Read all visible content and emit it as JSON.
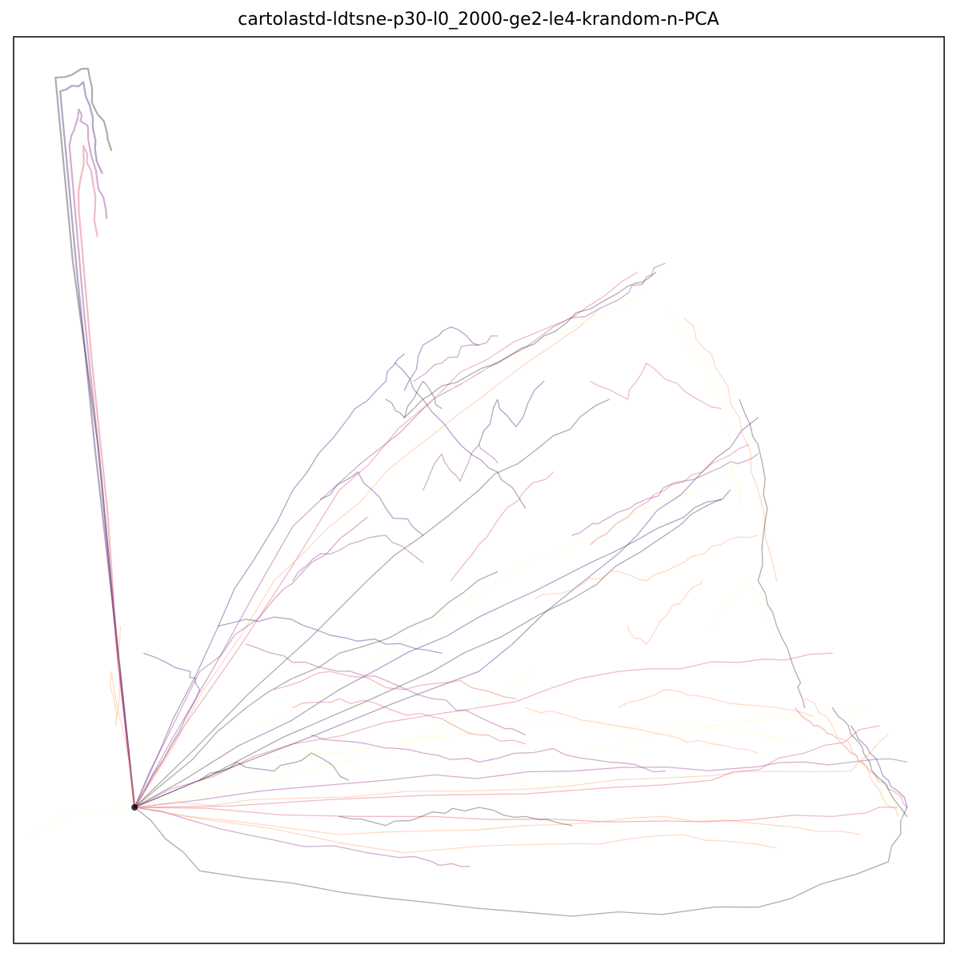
{
  "chart_data": {
    "type": "line",
    "title": "cartolastd-ldtsne-p30-l0_2000-ge2-le4-krandom-n-PCA",
    "xlabel": "",
    "ylabel": "",
    "xlim": [
      0,
      100
    ],
    "ylim": [
      0,
      100
    ],
    "grid": false,
    "legend": "none",
    "ticks": "hidden",
    "colormap": [
      "#000004",
      "#3b0f70",
      "#8c2981",
      "#de4968",
      "#fe9f6d",
      "#fcfdbf"
    ],
    "series": [
      {
        "x": [
          13.0,
          4.5,
          8.0,
          9.0,
          10.5
        ],
        "y": [
          15.0,
          95.5,
          96.5,
          91.5,
          87.5
        ]
      },
      {
        "x": [
          13.0,
          5.0,
          7.5,
          8.5,
          9.5
        ],
        "y": [
          15.0,
          94.0,
          95.0,
          90.0,
          85.0
        ]
      },
      {
        "x": [
          13.0,
          6.0,
          7.0,
          8.0,
          9.0,
          10.0
        ],
        "y": [
          15.0,
          88.0,
          92.0,
          90.0,
          84.0,
          80.0
        ]
      },
      {
        "x": [
          13.0,
          7.0,
          7.5,
          8.5,
          9.0
        ],
        "y": [
          15.0,
          81.0,
          88.0,
          84.0,
          78.0
        ]
      },
      {
        "x": [
          13.0,
          10.5,
          11.0,
          11.5
        ],
        "y": [
          15.0,
          30.0,
          24.0,
          35.0
        ]
      },
      {
        "x": [
          13.0,
          5.0,
          1.5
        ],
        "y": [
          15.0,
          14.0,
          11.5
        ]
      },
      {
        "x": [
          13.0,
          20.0,
          40.0,
          60.0,
          80.0,
          94.0,
          96.0
        ],
        "y": [
          15.0,
          8.0,
          5.0,
          3.0,
          4.0,
          9.0,
          15.0
        ]
      },
      {
        "x": [
          13.0,
          17.0,
          20.0,
          19.0,
          14.0
        ],
        "y": [
          15.0,
          22.0,
          28.0,
          30.0,
          32.0
        ]
      },
      {
        "x": [
          13.0,
          30.0,
          45.0,
          58.0,
          65.0,
          68.0,
          70.0
        ],
        "y": [
          15.0,
          46.0,
          60.0,
          68.0,
          71.0,
          73.5,
          75.0
        ]
      },
      {
        "x": [
          13.0,
          35.0,
          48.0,
          60.0,
          67.0
        ],
        "y": [
          15.0,
          50.0,
          63.0,
          69.0,
          74.0
        ]
      },
      {
        "x": [
          13.0,
          28.0,
          40.0,
          50.0,
          58.0,
          63.0
        ],
        "y": [
          15.0,
          40.0,
          52.0,
          60.0,
          66.0,
          70.0
        ]
      },
      {
        "x": [
          13.0,
          40.0,
          55.0,
          68.0,
          75.0,
          78.0
        ],
        "y": [
          15.0,
          32.0,
          42.0,
          48.0,
          51.0,
          53.0
        ]
      },
      {
        "x": [
          13.0,
          45.0,
          60.0,
          70.0,
          76.0
        ],
        "y": [
          15.0,
          30.0,
          38.0,
          45.0,
          49.0
        ]
      },
      {
        "x": [
          13.0,
          35.0,
          50.0,
          62.0,
          72.0,
          77.0
        ],
        "y": [
          15.0,
          28.0,
          36.0,
          42.0,
          47.0,
          50.0
        ]
      },
      {
        "x": [
          13.0,
          40.0,
          60.0,
          80.0,
          90.0,
          96.0
        ],
        "y": [
          15.0,
          18.0,
          19.0,
          19.5,
          20.0,
          20.0
        ]
      },
      {
        "x": [
          13.0,
          45.0,
          70.0,
          88.0,
          95.0
        ],
        "y": [
          15.0,
          14.0,
          13.5,
          14.0,
          15.0
        ]
      },
      {
        "x": [
          13.0,
          30.0,
          55.0,
          75.0,
          90.0,
          94.0
        ],
        "y": [
          15.0,
          16.0,
          17.0,
          18.5,
          19.0,
          23.0
        ]
      },
      {
        "x": [
          13.0,
          25.0,
          40.0,
          55.0,
          72.0,
          85.0,
          92.0
        ],
        "y": [
          15.0,
          20.0,
          22.0,
          24.0,
          24.0,
          25.0,
          26.0
        ]
      },
      {
        "x": [
          13.0,
          25.0,
          35.0,
          45.0,
          52.0
        ],
        "y": [
          15.0,
          26.0,
          32.0,
          36.0,
          41.0
        ]
      },
      {
        "x": [
          13.0,
          22.0,
          30.0,
          36.0,
          40.0,
          42.0
        ],
        "y": [
          15.0,
          35.0,
          50.0,
          58.0,
          62.0,
          65.0
        ]
      },
      {
        "x": [
          13.0,
          20.0,
          28.0,
          32.0,
          38.0
        ],
        "y": [
          15.0,
          30.0,
          38.0,
          42.0,
          47.0
        ]
      },
      {
        "x": [
          13.0,
          30.0,
          50.0,
          65.0,
          78.0,
          88.0
        ],
        "y": [
          15.0,
          22.0,
          26.0,
          30.0,
          31.0,
          32.0
        ]
      },
      {
        "x": [
          13.0,
          35.0,
          55.0,
          70.0,
          82.0,
          91.0
        ],
        "y": [
          15.0,
          12.0,
          13.0,
          14.0,
          13.0,
          12.0
        ]
      },
      {
        "x": [
          13.0,
          28.0,
          40.0,
          48.0,
          56.0
        ],
        "y": [
          15.0,
          18.0,
          21.0,
          25.0,
          30.0
        ]
      },
      {
        "x": [
          13.0,
          38.0,
          50.0,
          58.0,
          64.0
        ],
        "y": [
          15.0,
          40.0,
          50.0,
          56.0,
          60.0
        ]
      },
      {
        "x": [
          13.0,
          50.0,
          65.0,
          74.0,
          80.0
        ],
        "y": [
          15.0,
          30.0,
          43.0,
          52.0,
          58.0
        ]
      },
      {
        "x": [
          13.0,
          25.0,
          38.0,
          45.0,
          49.0
        ],
        "y": [
          15.0,
          12.0,
          10.0,
          9.0,
          8.5
        ]
      },
      {
        "x": [
          13.0,
          55.0,
          75.0,
          85.0,
          93.0
        ],
        "y": [
          15.0,
          16.5,
          18.0,
          21.0,
          24.0
        ]
      },
      {
        "x": [
          13.0,
          42.0,
          60.0,
          72.0,
          82.0
        ],
        "y": [
          15.0,
          10.0,
          11.0,
          12.0,
          10.5
        ]
      },
      {
        "x": [
          40.0,
          45.0,
          50.0,
          56.0,
          60.0,
          64.0,
          68.0
        ],
        "y": [
          56.0,
          60.0,
          63.0,
          66.0,
          68.0,
          70.0,
          72.0
        ]
      },
      {
        "x": [
          42.0,
          46.0,
          52.0,
          57.0,
          62.0,
          66.0,
          69.0
        ],
        "y": [
          58.0,
          61.5,
          64.0,
          67.0,
          70.0,
          72.5,
          74.0
        ]
      },
      {
        "x": [
          41.0,
          44.0,
          48.0,
          52.0,
          55.0
        ],
        "y": [
          64.0,
          60.0,
          55.0,
          52.0,
          48.0
        ]
      },
      {
        "x": [
          60.0,
          64.0,
          68.0,
          72.0,
          76.0,
          80.0
        ],
        "y": [
          45.0,
          47.0,
          49.0,
          51.0,
          52.5,
          54.0
        ]
      },
      {
        "x": [
          62.0,
          66.0,
          70.0,
          74.0,
          79.0
        ],
        "y": [
          44.0,
          47.0,
          50.0,
          52.0,
          55.0
        ]
      },
      {
        "x": [
          72.0,
          75.0,
          78.0,
          80.0,
          82.0
        ],
        "y": [
          69.0,
          65.0,
          58.0,
          50.0,
          40.0
        ]
      },
      {
        "x": [
          70.0,
          74.0,
          77.0,
          78.0
        ],
        "y": [
          70.0,
          64.0,
          56.0,
          48.0
        ]
      },
      {
        "x": [
          78.0,
          80.0,
          81.0,
          80.0,
          82.0,
          84.0,
          85.0
        ],
        "y": [
          60.0,
          55.0,
          48.0,
          40.0,
          35.0,
          30.0,
          26.0
        ]
      },
      {
        "x": [
          42.0,
          44.0,
          47.0,
          50.0
        ],
        "y": [
          61.0,
          66.0,
          68.0,
          66.0
        ]
      },
      {
        "x": [
          43.0,
          46.0,
          49.0,
          52.0
        ],
        "y": [
          62.0,
          64.0,
          66.0,
          67.0
        ]
      },
      {
        "x": [
          84.0,
          86.0,
          88.0,
          90.0,
          92.0,
          94.0,
          96.0
        ],
        "y": [
          26.0,
          24.0,
          23.0,
          21.0,
          19.0,
          17.0,
          15.0
        ]
      },
      {
        "x": [
          85.0,
          88.0,
          91.0,
          93.0,
          95.0
        ],
        "y": [
          27.0,
          24.0,
          20.0,
          17.0,
          14.0
        ]
      },
      {
        "x": [
          86.0,
          89.0,
          92.0,
          94.0,
          96.0
        ],
        "y": [
          25.0,
          22.0,
          19.0,
          16.0,
          13.0
        ]
      },
      {
        "x": [
          88.0,
          90.0,
          92.0,
          94.0,
          96.0
        ],
        "y": [
          26.0,
          23.0,
          20.0,
          17.0,
          14.0
        ]
      },
      {
        "x": [
          90.0,
          92.0,
          94.0,
          96.0
        ],
        "y": [
          24.0,
          21.0,
          18.0,
          15.0
        ]
      },
      {
        "x": [
          25.0,
          30.0,
          35.0,
          40.0,
          45.0,
          50.0,
          55.0
        ],
        "y": [
          33.0,
          31.0,
          30.0,
          29.0,
          27.0,
          25.0,
          23.0
        ]
      },
      {
        "x": [
          30.0,
          35.0,
          40.0,
          45.0,
          50.0,
          55.0
        ],
        "y": [
          26.0,
          27.0,
          26.0,
          25.0,
          23.0,
          22.0
        ]
      },
      {
        "x": [
          55.0,
          60.0,
          65.0,
          70.0,
          75.0,
          80.0
        ],
        "y": [
          26.0,
          25.0,
          24.0,
          23.0,
          22.0,
          21.0
        ]
      },
      {
        "x": [
          60.0,
          65.0,
          70.0,
          75.0,
          80.0,
          85.0
        ],
        "y": [
          20.0,
          22.0,
          23.0,
          24.0,
          23.0,
          22.0
        ]
      },
      {
        "x": [
          35.0,
          40.0,
          45.0,
          50.0,
          55.0,
          60.0
        ],
        "y": [
          14.0,
          13.0,
          14.5,
          15.0,
          14.0,
          13.0
        ]
      },
      {
        "x": [
          22.0,
          28.0,
          34.0,
          40.0,
          46.0
        ],
        "y": [
          35.0,
          36.0,
          34.0,
          33.0,
          32.0
        ]
      },
      {
        "x": [
          30.0,
          33.0,
          36.0,
          40.0,
          44.0
        ],
        "y": [
          40.0,
          43.0,
          44.0,
          45.0,
          42.0
        ]
      },
      {
        "x": [
          47.0,
          50.0,
          53.0,
          55.0,
          58.0
        ],
        "y": [
          40.0,
          44.0,
          48.0,
          50.0,
          52.0
        ]
      },
      {
        "x": [
          66.0,
          68.0,
          70.0,
          72.0,
          74.0
        ],
        "y": [
          35.0,
          33.0,
          36.0,
          38.0,
          40.0
        ]
      },
      {
        "x": [
          75.0,
          77.0,
          79.0,
          80.0,
          82.0
        ],
        "y": [
          35.0,
          38.0,
          40.0,
          38.0,
          34.0
        ]
      },
      {
        "x": [
          40.0,
          42.0,
          44.0,
          46.0
        ],
        "y": [
          60.0,
          58.0,
          62.0,
          59.0
        ]
      },
      {
        "x": [
          50.0,
          52.0,
          54.0,
          57.0
        ],
        "y": [
          55.0,
          60.0,
          57.0,
          62.0
        ]
      },
      {
        "x": [
          32.0,
          38.0,
          44.0,
          50.0,
          58.0,
          64.0,
          70.0
        ],
        "y": [
          23.0,
          22.0,
          21.0,
          20.0,
          21.5,
          20.0,
          19.0
        ]
      },
      {
        "x": [
          28.0,
          34.0,
          42.0,
          48.0,
          54.0
        ],
        "y": [
          28.0,
          30.0,
          28.0,
          29.0,
          27.0
        ]
      },
      {
        "x": [
          65.0,
          70.0,
          75.0,
          82.0,
          86.0
        ],
        "y": [
          26.0,
          28.0,
          27.0,
          26.0,
          25.0
        ]
      },
      {
        "x": [
          45.0,
          48.0,
          52.0,
          56.0,
          60.0
        ],
        "y": [
          18.0,
          20.0,
          19.0,
          17.0,
          18.0
        ]
      },
      {
        "x": [
          20.0,
          24.0,
          28.0,
          32.0,
          36.0
        ],
        "y": [
          18.0,
          20.0,
          19.0,
          21.0,
          18.0
        ]
      },
      {
        "x": [
          33.0,
          37.0,
          40.0,
          44.0
        ],
        "y": [
          49.0,
          52.0,
          48.0,
          45.0
        ]
      },
      {
        "x": [
          44.0,
          46.0,
          48.0,
          50.0,
          52.0
        ],
        "y": [
          50.0,
          54.0,
          51.0,
          55.0,
          53.0
        ]
      },
      {
        "x": [
          62.0,
          66.0,
          68.0,
          72.0,
          76.0
        ],
        "y": [
          62.0,
          60.0,
          64.0,
          61.0,
          59.0
        ]
      },
      {
        "x": [
          56.0,
          60.0,
          64.0,
          68.0,
          72.0,
          76.0,
          80.0
        ],
        "y": [
          38.0,
          39.0,
          41.0,
          40.0,
          42.0,
          44.0,
          45.0
        ]
      }
    ]
  }
}
